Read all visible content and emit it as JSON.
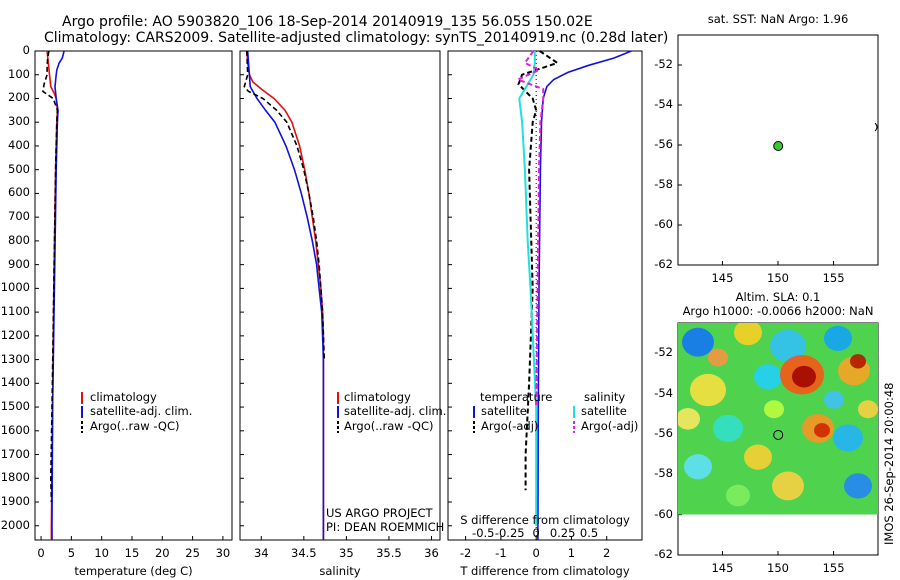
{
  "header": {
    "title_line1": "Argo profile: AO 5903820_106 18-Sep-2014 20140919_135 56.05S 150.02E",
    "title_line2": "Climatology: CARS2009. Satellite-adjusted climatology: synTS_20140919.nc (0.28d later)"
  },
  "colors": {
    "climatology": "#e01010",
    "satellite": "#1010e0",
    "argo": "#000000",
    "sal_satellite": "#20e0e0",
    "sal_argo": "#e020e0",
    "dot": "#33cc33"
  },
  "chart_data": [
    {
      "type": "line",
      "name": "temperature-profile",
      "xlabel": "temperature (deg C)",
      "ylabel": "",
      "xlim": [
        -1,
        31.5
      ],
      "ylim": [
        2060,
        0
      ],
      "xticks": [
        0,
        5,
        10,
        15,
        20,
        25,
        30
      ],
      "yticks": [
        0,
        100,
        200,
        300,
        400,
        500,
        600,
        700,
        800,
        900,
        1000,
        1100,
        1200,
        1300,
        1400,
        1500,
        1600,
        1700,
        1800,
        1900,
        2000
      ],
      "ytick_labels": [
        "0",
        "100",
        "200",
        "300",
        "400",
        "500",
        "600",
        "700",
        "800",
        "900",
        "1000",
        "1100",
        "1200",
        "1300",
        "1400",
        "1500",
        "1600",
        "1700",
        "1800",
        "1900",
        "2000"
      ],
      "legend": [
        "climatology",
        "satellite-adj. clim.",
        "Argo(..raw -QC)"
      ],
      "series": [
        {
          "name": "climatology",
          "depth": [
            0,
            50,
            100,
            150,
            180,
            200,
            250,
            300,
            500,
            1000,
            1500,
            2000,
            2060
          ],
          "values": [
            1.0,
            1.2,
            1.4,
            1.6,
            2.2,
            2.5,
            2.7,
            2.6,
            2.4,
            2.1,
            1.9,
            1.7,
            1.7
          ]
        },
        {
          "name": "satellite-adj. clim.",
          "depth": [
            0,
            30,
            50,
            80,
            100,
            150,
            200,
            250,
            300,
            500,
            1000,
            1500,
            2000,
            2060
          ],
          "values": [
            3.8,
            3.5,
            3.0,
            2.6,
            2.5,
            2.3,
            2.5,
            2.8,
            2.7,
            2.5,
            2.2,
            1.9,
            1.8,
            1.8
          ]
        },
        {
          "name": "Argo(..raw -QC)",
          "depth": [
            0,
            30,
            60,
            100,
            140,
            170,
            200,
            250,
            300,
            500,
            1000,
            1500,
            1800,
            1900
          ],
          "values": [
            1.3,
            1.1,
            1.0,
            1.0,
            0.5,
            0.3,
            2.0,
            2.7,
            2.6,
            2.4,
            2.1,
            1.8,
            1.6,
            1.7
          ]
        }
      ]
    },
    {
      "type": "line",
      "name": "salinity-profile",
      "xlabel": "salinity",
      "ylabel": "",
      "xlim": [
        33.75,
        36.1
      ],
      "ylim": [
        2060,
        0
      ],
      "xticks": [
        34,
        34.5,
        35,
        35.5,
        36
      ],
      "xtick_labels": [
        "34",
        "34.5",
        "35",
        "35.5",
        "36"
      ],
      "legend": [
        "climatology",
        "satellite-adj. clim.",
        "Argo(..raw -QC)"
      ],
      "annotations": [
        "US ARGO PROJECT",
        "PI: DEAN ROEMMICH"
      ],
      "series": [
        {
          "name": "climatology",
          "depth": [
            0,
            50,
            100,
            130,
            160,
            200,
            250,
            300,
            400,
            500,
            600,
            700,
            800,
            900,
            1000,
            1100,
            1200,
            2060
          ],
          "values": [
            33.83,
            33.84,
            33.86,
            33.9,
            34.0,
            34.15,
            34.28,
            34.36,
            34.45,
            34.51,
            34.56,
            34.6,
            34.64,
            34.67,
            34.7,
            34.72,
            34.73,
            34.73
          ]
        },
        {
          "name": "satellite-adj. clim.",
          "depth": [
            0,
            50,
            100,
            150,
            200,
            250,
            300,
            400,
            500,
            600,
            700,
            800,
            900,
            1000,
            1100,
            1200,
            1300,
            2060
          ],
          "values": [
            33.84,
            33.85,
            33.86,
            33.87,
            33.95,
            34.05,
            34.16,
            34.29,
            34.39,
            34.47,
            34.54,
            34.6,
            34.65,
            34.68,
            34.71,
            34.72,
            34.73,
            34.73
          ]
        },
        {
          "name": "Argo(..raw -QC)",
          "depth": [
            0,
            100,
            150,
            170,
            200,
            250,
            300,
            400,
            500,
            600,
            700,
            800,
            900,
            1000,
            1100,
            1200,
            1300
          ],
          "values": [
            33.83,
            33.84,
            33.8,
            33.85,
            34.02,
            34.18,
            34.3,
            34.42,
            34.5,
            34.56,
            34.61,
            34.65,
            34.68,
            34.7,
            34.72,
            34.73,
            34.74
          ]
        }
      ]
    },
    {
      "type": "line",
      "name": "difference-profile",
      "xlabel": "T difference from climatology",
      "top_axis_label": "S difference from climatology",
      "xlim": [
        -2.5,
        3.0
      ],
      "ylim": [
        2060,
        0
      ],
      "xticks": [
        -2,
        -1,
        0,
        1,
        2
      ],
      "xtick_labels": [
        "-2",
        "-1",
        "0",
        "1",
        "2"
      ],
      "top_ticks": [
        -0.5,
        -0.25,
        0,
        0.25,
        0.5
      ],
      "top_tick_labels": [
        "-0.5",
        "-0.25",
        "0",
        "0.25",
        "0.5"
      ],
      "legend": [
        "temperature",
        "satellite",
        "Argo(-adj)",
        "salinity",
        "satellite",
        "Argo(-adj)"
      ],
      "legend_titles": {
        "temperature": "temperature",
        "salinity": "salinity"
      },
      "series": [
        {
          "name": "temperature satellite",
          "depth": [
            0,
            30,
            60,
            90,
            120,
            150,
            200,
            300,
            500,
            1000,
            1500,
            2000,
            2060
          ],
          "values": [
            2.7,
            2.2,
            1.5,
            0.9,
            0.5,
            0.3,
            0.2,
            0.15,
            0.12,
            0.08,
            0.06,
            0.05,
            0.05
          ]
        },
        {
          "name": "temperature Argo(-adj)",
          "depth": [
            0,
            50,
            100,
            140,
            170,
            200,
            250,
            300,
            500,
            1000,
            1400,
            1700,
            1850
          ],
          "values": [
            0.1,
            0.6,
            -0.4,
            -0.5,
            -0.3,
            -0.1,
            0.0,
            -0.1,
            -0.2,
            -0.1,
            -0.2,
            -0.3,
            -0.3
          ]
        },
        {
          "name": "salinity satellite",
          "depth": [
            0,
            50,
            100,
            200,
            300,
            500,
            800,
            1000,
            1500,
            2000
          ],
          "values": [
            -0.01,
            -0.01,
            -0.02,
            -0.12,
            -0.1,
            -0.08,
            -0.06,
            -0.04,
            0.0,
            0.0
          ]
        },
        {
          "name": "salinity Argo(-adj)",
          "depth": [
            0,
            50,
            80,
            120,
            160,
            200,
            300,
            500,
            1000,
            1500
          ],
          "values": [
            -0.02,
            -0.08,
            0.02,
            -0.13,
            0.05,
            0.05,
            0.03,
            0.02,
            0.01,
            0.0
          ]
        }
      ]
    },
    {
      "type": "scatter",
      "name": "sst-map",
      "title": "sat. SST: NaN Argo: 1.96",
      "xlim": [
        141,
        159
      ],
      "ylim": [
        -62,
        -50.5
      ],
      "xticks": [
        145,
        150,
        155
      ],
      "yticks": [
        -52,
        -54,
        -56,
        -58,
        -60,
        -62
      ],
      "points": [
        {
          "lon": 150.02,
          "lat": -56.05
        }
      ]
    },
    {
      "type": "heatmap",
      "name": "sla-map",
      "title_line1": "Altim. SLA: 0.1",
      "title_line2": "Argo h1000: -0.0066 h2000: NaN",
      "xlim": [
        141,
        159
      ],
      "ylim": [
        -62,
        -50.5
      ],
      "xticks": [
        145,
        150,
        155
      ],
      "yticks": [
        -52,
        -54,
        -56,
        -58,
        -60,
        -62
      ],
      "points": [
        {
          "lon": 150.02,
          "lat": -56.05
        }
      ]
    }
  ],
  "footer": {
    "stamp": "IMOS 26-Sep-2014 20:00:48"
  }
}
